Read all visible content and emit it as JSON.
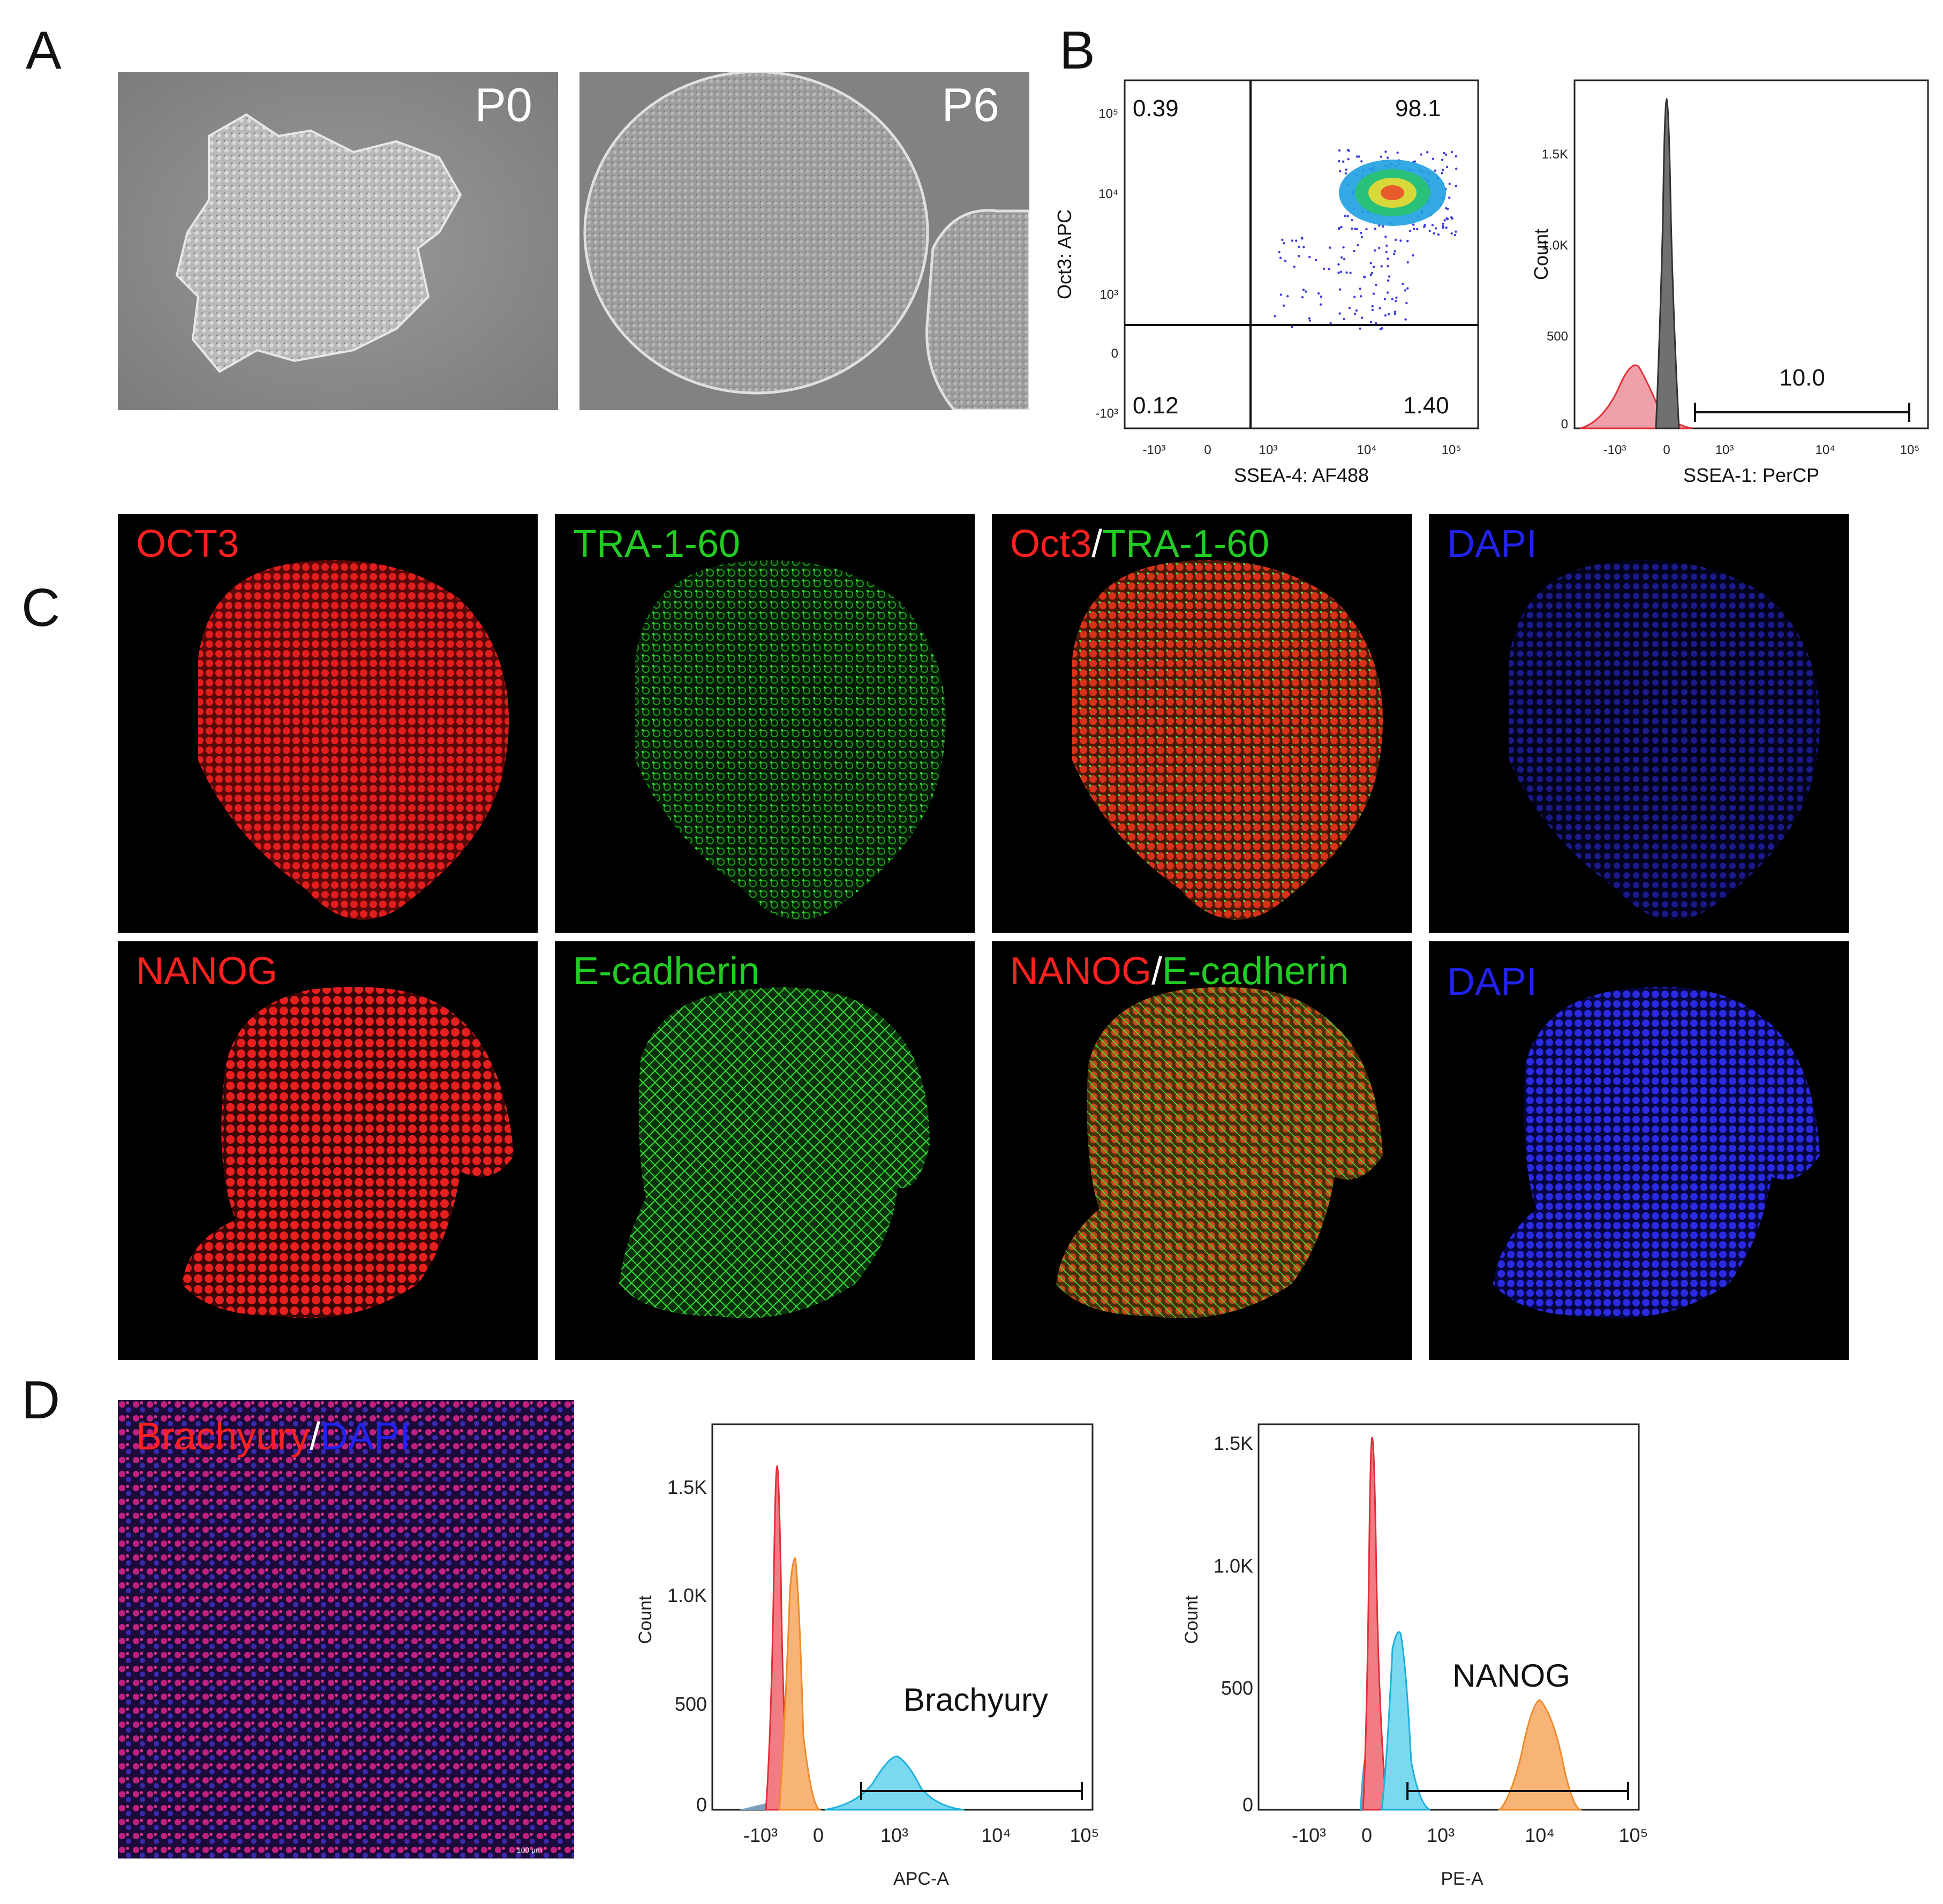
{
  "panels": {
    "A": {
      "letter": "A",
      "images": [
        {
          "tag": "P0"
        },
        {
          "tag": "P6"
        }
      ]
    },
    "B": {
      "letter": "B",
      "dotplot": {
        "xlabel": "SSEA-4: AF488",
        "ylabel": "Oct3: APC",
        "quadrants": {
          "upper_left": "0.39",
          "upper_right": "98.1",
          "lower_left": "0.12",
          "lower_right": "1.40"
        }
      },
      "histogram": {
        "xlabel": "SSEA-1: PerCP",
        "ylabel": "Count",
        "gate_value": "10.0"
      }
    },
    "C": {
      "letter": "C",
      "row1": [
        {
          "label": "OCT3",
          "color": "#ff2020"
        },
        {
          "label": "TRA-1-60",
          "color": "#22cc22"
        },
        {
          "label_a": "Oct3",
          "sep": "/",
          "label_b": "TRA-1-60"
        },
        {
          "label": "DAPI",
          "color": "#2222ee"
        }
      ],
      "row2": [
        {
          "label": "NANOG",
          "color": "#ff2020"
        },
        {
          "label": "E-cadherin",
          "color": "#22cc22"
        },
        {
          "label_a": "NANOG",
          "sep": "/",
          "label_b": "E-cadherin"
        },
        {
          "label": "DAPI",
          "color": "#2222ee"
        }
      ]
    },
    "D": {
      "letter": "D",
      "image": {
        "label_a": "Brachyury",
        "sep": "/",
        "label_b": "DAPI",
        "scale_text": "100 μm"
      },
      "hist1": {
        "xlabel": "APC-A",
        "ylabel": "Count",
        "annotation": "Brachyury"
      },
      "hist2": {
        "xlabel": "PE-A",
        "ylabel": "Count",
        "annotation": "NANOG"
      }
    }
  },
  "chart_data": [
    {
      "type": "scatter",
      "title": "",
      "xlabel": "SSEA-4: AF488",
      "ylabel": "Oct3: APC",
      "x_ticks": [
        "-10³",
        "0",
        "10³",
        "10⁴",
        "10⁵"
      ],
      "y_ticks": [
        "-10³",
        "0",
        "10³",
        "10⁴",
        "10⁵"
      ],
      "quadrant_percentages": {
        "upper_left": 0.39,
        "upper_right": 98.1,
        "lower_left": 0.12,
        "lower_right": 1.4
      }
    },
    {
      "type": "area",
      "title": "",
      "xlabel": "SSEA-1: PerCP",
      "ylabel": "Count",
      "x_ticks": [
        "-10³",
        "0",
        "10³",
        "10⁴",
        "10⁵"
      ],
      "y_ticks": [
        "0",
        "500",
        "1.0K",
        "1.5K"
      ],
      "gate_percentage": 10.0,
      "series": [
        {
          "color": "#e8454f",
          "peak_count": 250
        },
        {
          "color": "#6f6f6f",
          "peak_count": 1800
        }
      ]
    },
    {
      "type": "area",
      "title": "",
      "xlabel": "APC-A",
      "ylabel": "Count",
      "x_ticks": [
        "-10³",
        "0",
        "10³",
        "10⁴",
        "10⁵"
      ],
      "y_ticks": [
        "0",
        "500",
        "1.0K",
        "1.5K"
      ],
      "annotation": "Brachyury",
      "series": [
        {
          "color": "#e8454f",
          "peak_count": 1650
        },
        {
          "color": "#f5a04a",
          "peak_count": 1180
        },
        {
          "color": "#34c3e6",
          "peak_count": 270
        }
      ]
    },
    {
      "type": "area",
      "title": "",
      "xlabel": "PE-A",
      "ylabel": "Count",
      "x_ticks": [
        "-10³",
        "0",
        "10³",
        "10⁴",
        "10⁵"
      ],
      "y_ticks": [
        "0",
        "500",
        "1.0K",
        "1.5K"
      ],
      "annotation": "NANOG",
      "series": [
        {
          "color": "#e8454f",
          "peak_count": 1530
        },
        {
          "color": "#34c3e6",
          "peak_count": 700
        },
        {
          "color": "#f5a04a",
          "peak_count": 480
        }
      ]
    }
  ]
}
